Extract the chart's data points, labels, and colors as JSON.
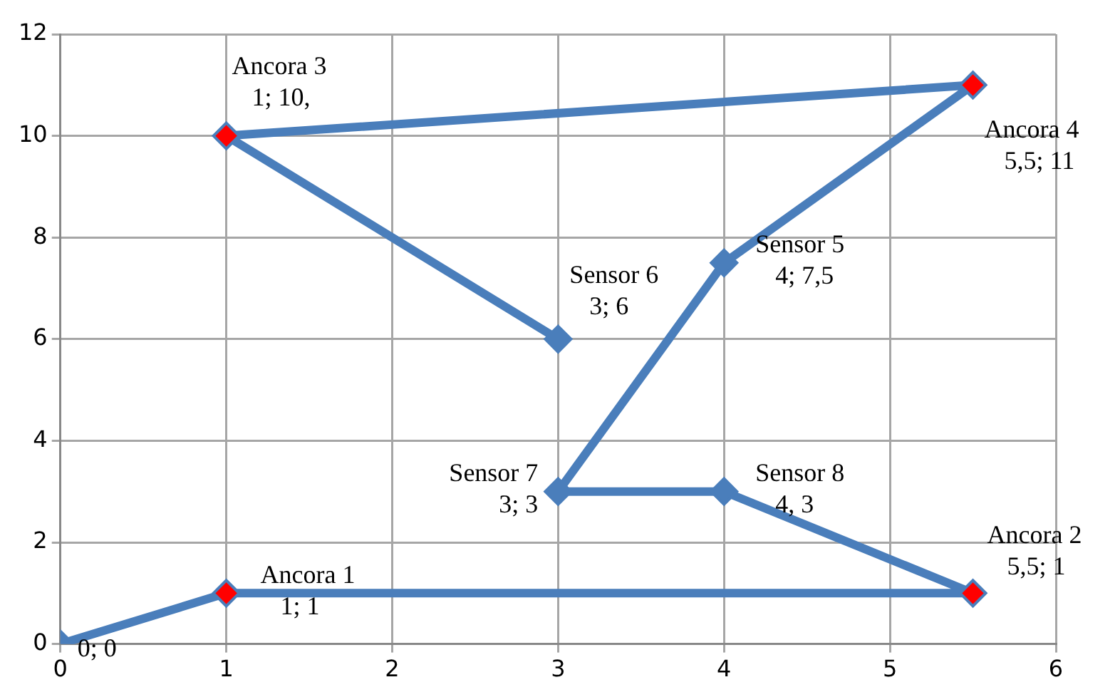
{
  "chart_data": {
    "type": "line",
    "series": [
      {
        "color": "#4a7ebb",
        "x": [
          0,
          1,
          5.5,
          4,
          3,
          4,
          5.5,
          1,
          3
        ],
        "values": [
          0,
          1,
          1,
          3,
          3,
          7.5,
          11,
          10,
          6
        ],
        "colors": [
          "#4a7ebb",
          "#ff0000",
          "#ff0000",
          "#4a7ebb",
          "#4a7ebb",
          "#4a7ebb",
          "#ff0000",
          "#ff0000",
          "#4a7ebb"
        ]
      }
    ],
    "xlim": [
      0,
      6
    ],
    "xticks": [
      0,
      1,
      2,
      3,
      4,
      5,
      6
    ],
    "ylim": [
      0,
      12
    ],
    "yticks": [
      0,
      2,
      4,
      6,
      8,
      10,
      12
    ],
    "grid": true,
    "legend": false,
    "marker": "diamond",
    "line_style": "solid",
    "annotations": [
      {
        "text": "0; 0",
        "x": 0,
        "y": 0
      },
      {
        "text": "Ancora 1\n1; 1",
        "x": 1,
        "y": 1
      },
      {
        "text": "Ancora 2\n5,5; 1",
        "x": 5.5,
        "y": 1
      },
      {
        "text": "Sensor 8\n4, 3",
        "x": 4,
        "y": 3
      },
      {
        "text": "Sensor 7\n3; 3",
        "x": 3,
        "y": 3
      },
      {
        "text": "Sensor 5\n4; 7,5",
        "x": 4,
        "y": 7.5
      },
      {
        "text": "Ancora 4\n5,5; 11",
        "x": 5.5,
        "y": 11
      },
      {
        "text": "Ancora 3\n1; 10,",
        "x": 1,
        "y": 10
      },
      {
        "text": "Sensor 6\n3; 6",
        "x": 3,
        "y": 6
      }
    ]
  }
}
